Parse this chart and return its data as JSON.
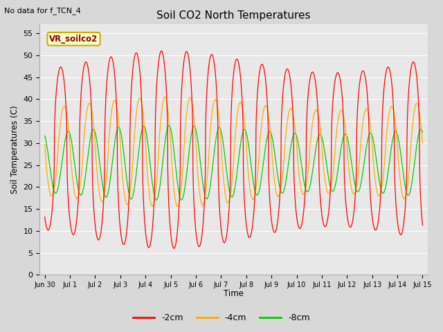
{
  "title": "Soil CO2 North Temperatures",
  "top_left_text": "No data for f_TCN_4",
  "ylabel": "Soil Temperatures (C)",
  "xlabel": "Time",
  "ylim": [
    0,
    57
  ],
  "yticks": [
    0,
    5,
    10,
    15,
    20,
    25,
    30,
    35,
    40,
    45,
    50,
    55
  ],
  "xtick_labels": [
    "Jun 30",
    "Jul 1",
    "Jul 2",
    "Jul 3",
    "Jul 4",
    "Jul 5",
    "Jul 6",
    "Jul 7",
    "Jul 8",
    "Jul 9",
    "Jul 10",
    "Jul 11",
    "Jul 12",
    "Jul 13",
    "Jul 14",
    "Jul 15"
  ],
  "legend_label": "VR_soilco2",
  "legend_box_facecolor": "#ffffcc",
  "legend_box_edgecolor": "#ccaa00",
  "color_2cm": "#ff0000",
  "color_4cm": "#ffaa00",
  "color_8cm": "#00cc00",
  "legend_entries": [
    "-2cm",
    "-4cm",
    "-8cm"
  ],
  "bg_color": "#d8d8d8",
  "plot_bg_color": "#e8e8e8",
  "grid_color": "#ffffff",
  "figsize": [
    6.4,
    4.8
  ],
  "dpi": 100
}
